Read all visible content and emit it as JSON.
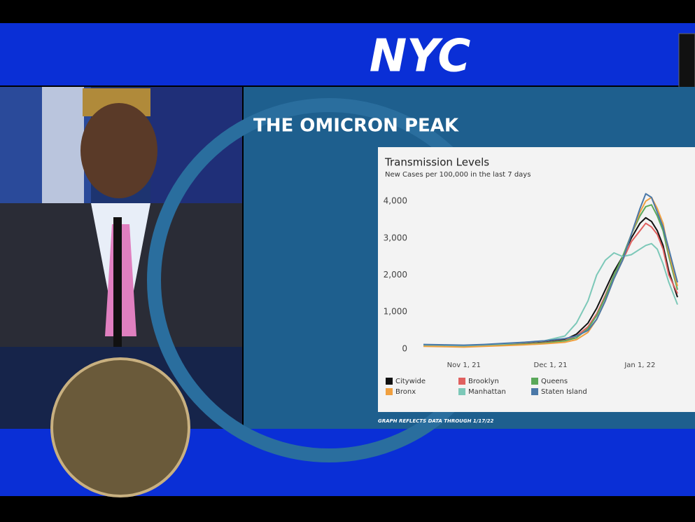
{
  "banner": {
    "logo": "NYC"
  },
  "slide": {
    "title": "THE OMICRON PEAK",
    "footnote": "GRAPH REFLECTS DATA THROUGH 1/17/22"
  },
  "chart_data": {
    "type": "line",
    "title": "Transmission Levels",
    "subtitle": "New Cases per 100,000 in the last 7 days",
    "x": [
      "2021-10-18",
      "2021-10-25",
      "2021-11-01",
      "2021-11-08",
      "2021-11-15",
      "2021-11-22",
      "2021-11-29",
      "2021-12-06",
      "2021-12-10",
      "2021-12-14",
      "2021-12-17",
      "2021-12-20",
      "2021-12-23",
      "2021-12-26",
      "2021-12-29",
      "2022-01-01",
      "2022-01-03",
      "2022-01-05",
      "2022-01-07",
      "2022-01-09",
      "2022-01-11",
      "2022-01-14"
    ],
    "xlim": [
      "2021-10-18",
      "2022-01-14"
    ],
    "xticks": [
      {
        "value": "2021-11-01",
        "label": "Nov 1, 21"
      },
      {
        "value": "2021-12-01",
        "label": "Dec 1, 21"
      },
      {
        "value": "2022-01-01",
        "label": "Jan 1, 22"
      }
    ],
    "ylim": [
      -200,
      4200
    ],
    "yticks": [
      0,
      {
        "value": 1000,
        "label": "1,000"
      },
      {
        "value": 2000,
        "label": "2,000"
      },
      {
        "value": 3000,
        "label": "3,000"
      },
      {
        "value": 4000,
        "label": "4,000"
      }
    ],
    "grid": false,
    "series": [
      {
        "name": "Citywide",
        "color": "#111111",
        "values": [
          100,
          90,
          80,
          100,
          120,
          150,
          180,
          250,
          400,
          700,
          1100,
          1600,
          2100,
          2500,
          3000,
          3400,
          3550,
          3450,
          3200,
          2800,
          2100,
          1400
        ]
      },
      {
        "name": "Brooklyn",
        "color": "#e0605f",
        "values": [
          90,
          80,
          70,
          90,
          110,
          140,
          170,
          230,
          350,
          600,
          950,
          1450,
          2000,
          2400,
          2900,
          3200,
          3400,
          3300,
          3100,
          2700,
          2000,
          1500
        ]
      },
      {
        "name": "Queens",
        "color": "#5aa85a",
        "values": [
          80,
          70,
          60,
          80,
          100,
          130,
          160,
          220,
          300,
          550,
          900,
          1400,
          2000,
          2500,
          3100,
          3600,
          3850,
          3900,
          3600,
          3200,
          2500,
          1600
        ]
      },
      {
        "name": "Bronx",
        "color": "#f0a040",
        "values": [
          70,
          60,
          50,
          70,
          90,
          110,
          140,
          180,
          250,
          450,
          800,
          1300,
          1900,
          2400,
          3100,
          3700,
          4000,
          4100,
          3800,
          3400,
          2600,
          1700
        ]
      },
      {
        "name": "Manhattan",
        "color": "#7cc8b8",
        "values": [
          110,
          100,
          90,
          110,
          140,
          180,
          220,
          350,
          700,
          1300,
          2000,
          2400,
          2600,
          2500,
          2550,
          2700,
          2800,
          2850,
          2700,
          2300,
          1800,
          1200
        ]
      },
      {
        "name": "Staten Island",
        "color": "#4a78a8",
        "values": [
          120,
          110,
          100,
          120,
          150,
          180,
          220,
          280,
          350,
          500,
          800,
          1300,
          1900,
          2400,
          3100,
          3800,
          4200,
          4100,
          3700,
          3300,
          2700,
          1800
        ]
      }
    ]
  }
}
